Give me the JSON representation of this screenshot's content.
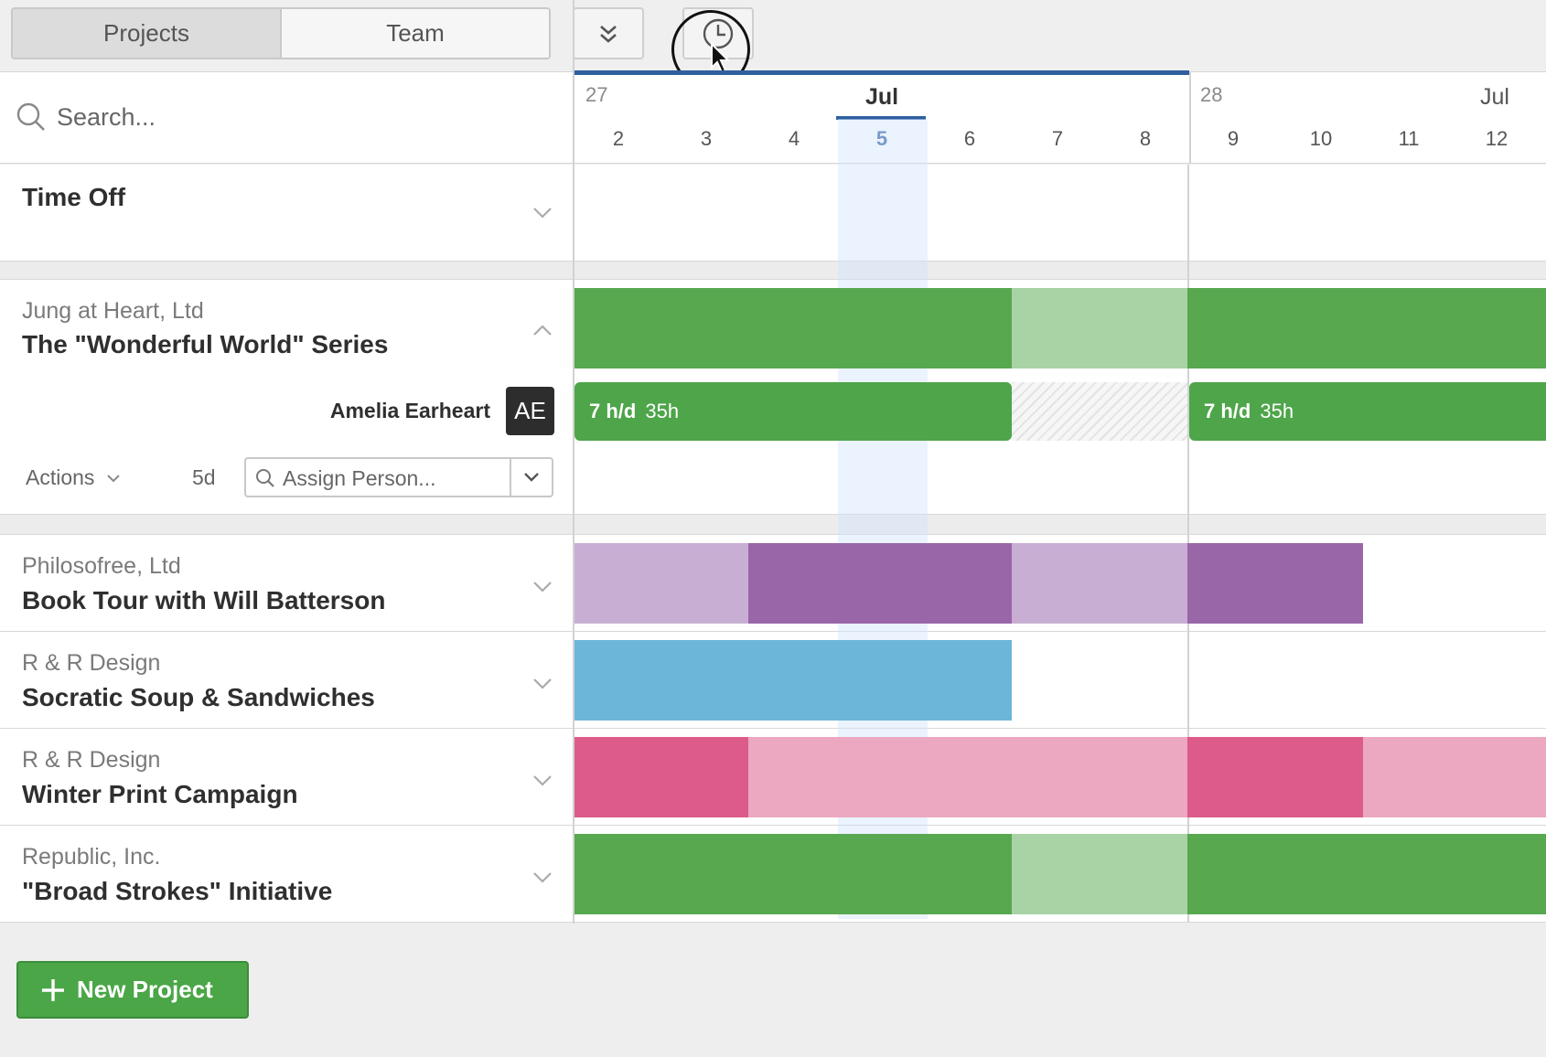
{
  "toolbar": {
    "tab_projects": "Projects",
    "tab_team": "Team"
  },
  "search": {
    "placeholder": "Search..."
  },
  "timeline": {
    "week1_number": "27",
    "week1_month": "Jul",
    "week2_number": "28",
    "week2_month": "Jul",
    "days": [
      "2",
      "3",
      "4",
      "5",
      "6",
      "7",
      "8",
      "9",
      "10",
      "11",
      "12"
    ],
    "today": "5"
  },
  "time_off": {
    "label": "Time Off"
  },
  "projects": [
    {
      "client": "Jung at Heart, Ltd",
      "name": "The \"Wonderful World\" Series"
    },
    {
      "client": "Philosofree, Ltd",
      "name": "Book Tour with Will Batterson"
    },
    {
      "client": "R & R Design",
      "name": "Socratic Soup & Sandwiches"
    },
    {
      "client": "R & R Design",
      "name": "Winter Print Campaign"
    },
    {
      "client": "Republic, Inc.",
      "name": "\"Broad Strokes\" Initiative"
    }
  ],
  "assignment": {
    "person_name": "Amelia Earheart",
    "person_initials": "AE",
    "actions_label": "Actions",
    "duration": "5d",
    "assign_placeholder": "Assign Person...",
    "alloc1_rate": "7 h/d",
    "alloc1_total": "35h",
    "alloc2_rate": "7 h/d",
    "alloc2_total": "35h"
  },
  "footer": {
    "new_project_label": "New Project"
  },
  "colors": {
    "green": "#57a84f",
    "green_light": "#a9d3a4",
    "purple": "#9966a8",
    "purple_light": "#c8aed3",
    "blue": "#6cb6d9",
    "pink": "#dd5b8a",
    "pink_light": "#eba8c0",
    "accent_blue": "#2f5f9e"
  }
}
